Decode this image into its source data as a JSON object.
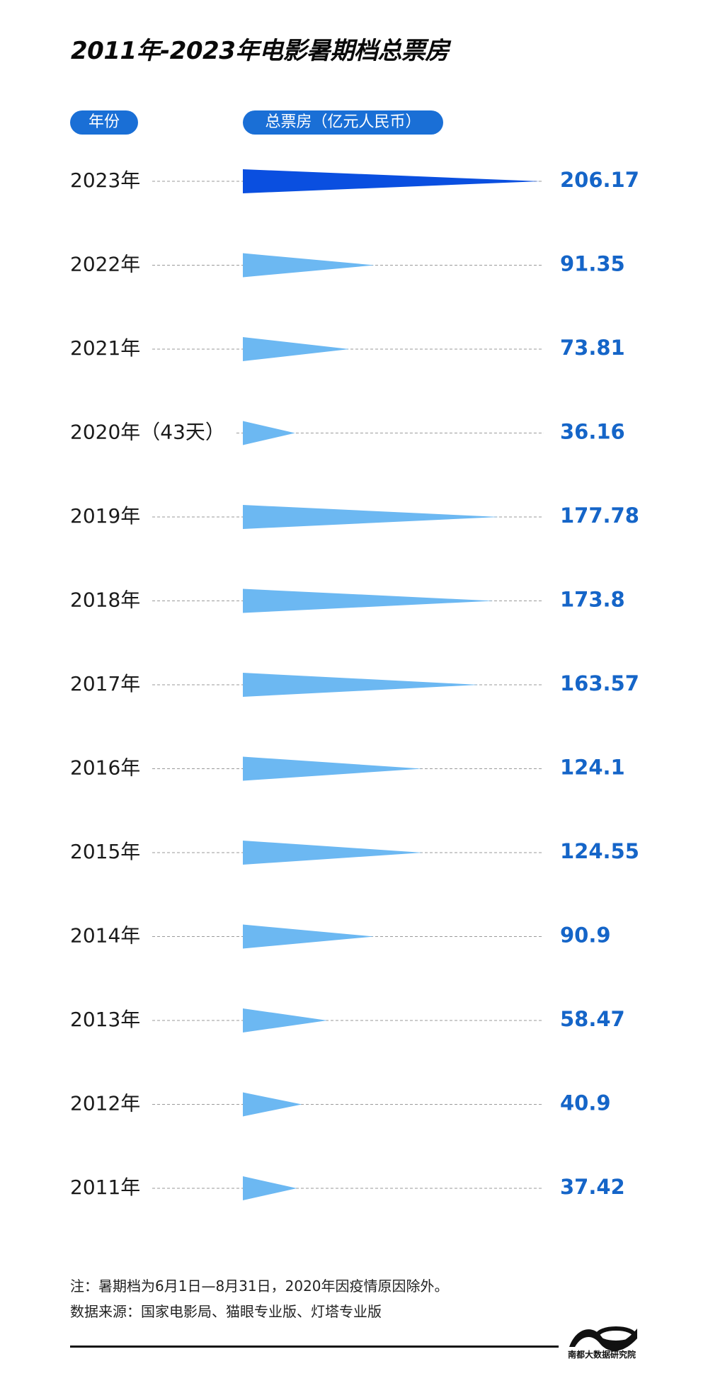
{
  "title": "2011年-2023年电影暑期档总票房",
  "header": {
    "year_label": "年份",
    "box_office_label": "总票房（亿元人民币）"
  },
  "colors": {
    "highlight": "#0a4fe0",
    "normal": "#6cb8f2",
    "pill": "#1a6fd6",
    "value_text": "#1565c8"
  },
  "chart_data": {
    "type": "bar",
    "title": "2011年-2023年电影暑期档总票房",
    "categories": [
      "2023年",
      "2022年",
      "2021年",
      "2020年（43天）",
      "2019年",
      "2018年",
      "2017年",
      "2016年",
      "2015年",
      "2014年",
      "2013年",
      "2012年",
      "2011年"
    ],
    "values": [
      206.17,
      91.35,
      73.81,
      36.16,
      177.78,
      173.8,
      163.57,
      124.1,
      124.55,
      90.9,
      58.47,
      40.9,
      37.42
    ],
    "value_labels": [
      "206.17",
      "91.35",
      "73.81",
      "36.16",
      "177.78",
      "173.8",
      "163.57",
      "124.1",
      "124.55",
      "90.9",
      "58.47",
      "40.9",
      "37.42"
    ],
    "highlight_index": 0,
    "orientation": "horizontal",
    "xlabel": "",
    "ylabel": "",
    "unit": "亿元人民币",
    "grid": false,
    "legend": "none"
  },
  "notes": {
    "line1": "注：暑期档为6月1日—8月31日，2020年因疫情原因除外。",
    "line2": "数据来源：国家电影局、猫眼专业版、灯塔专业版"
  },
  "logo": {
    "text": "南都大数据研究院"
  }
}
